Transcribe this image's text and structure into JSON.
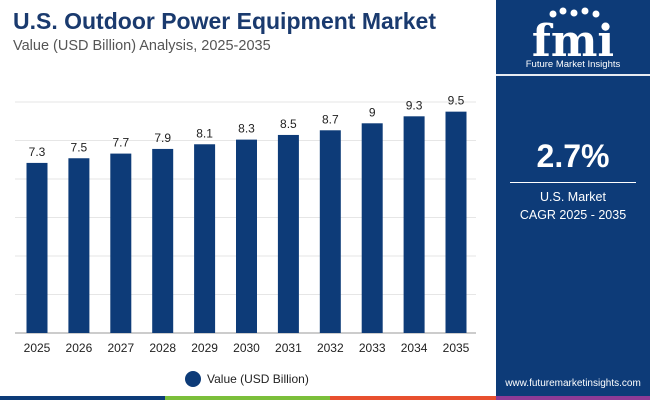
{
  "header": {
    "title": "U.S. Outdoor Power Equipment Market",
    "subtitle": "Value (USD Billion) Analysis, 2025-2035"
  },
  "sidebar": {
    "logo_text": "fmi",
    "brand_name": "Future Market Insights",
    "cagr_value": "2.7%",
    "cagr_line1": "U.S. Market",
    "cagr_line2": "CAGR 2025 - 2035",
    "website": "www.futuremarketinsights.com"
  },
  "legend": {
    "label": "Value (USD Billion)"
  },
  "colors": {
    "bar": "#0d3b78",
    "sidebar": "#0d3b78",
    "title": "#1a3a6e",
    "strip": [
      "#0d3b78",
      "#7bbf3a",
      "#e8502e",
      "#8e3b96"
    ]
  },
  "chart_data": {
    "type": "bar",
    "title": "U.S. Outdoor Power Equipment Market",
    "subtitle": "Value (USD Billion) Analysis, 2025-2035",
    "xlabel": "",
    "ylabel": "",
    "categories": [
      "2025",
      "2026",
      "2027",
      "2028",
      "2029",
      "2030",
      "2031",
      "2032",
      "2033",
      "2034",
      "2035"
    ],
    "series": [
      {
        "name": "Value (USD Billion)",
        "values": [
          7.3,
          7.5,
          7.7,
          7.9,
          8.1,
          8.3,
          8.5,
          8.7,
          9,
          9.3,
          9.5
        ],
        "labels": [
          "7.3",
          "7.5",
          "7.7",
          "7.9",
          "8.1",
          "8.3",
          "8.5",
          "8.7",
          "9",
          "9.3",
          "9.5"
        ]
      }
    ],
    "ylim": [
      0,
      10
    ],
    "grid": true,
    "legend": "bottom-center"
  }
}
